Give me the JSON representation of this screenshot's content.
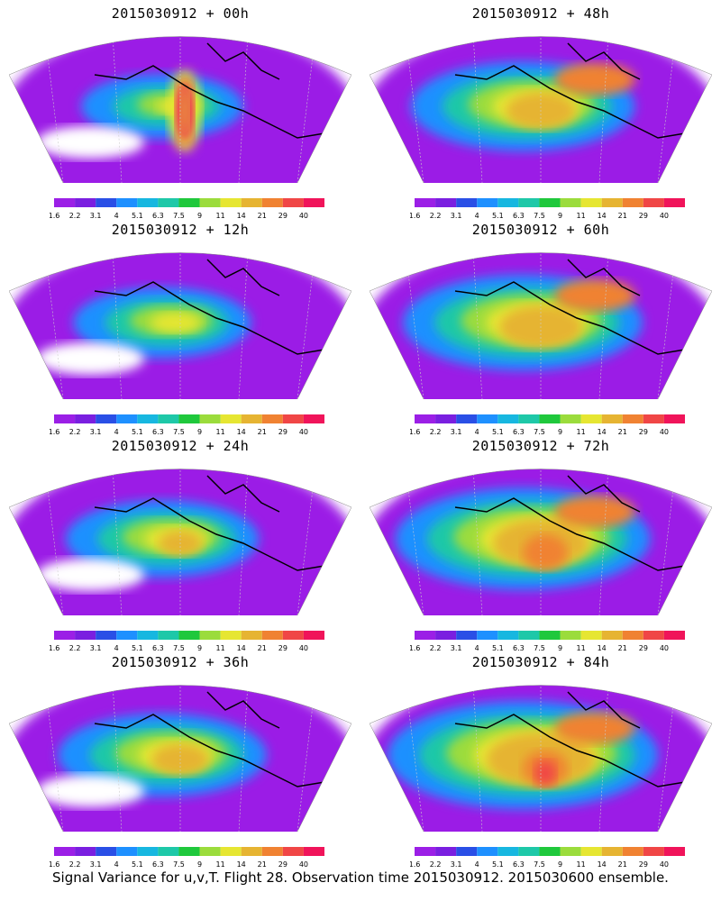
{
  "panels": [
    {
      "title": "2015030912 + 00h",
      "lead_hours": 0
    },
    {
      "title": "2015030912 + 48h",
      "lead_hours": 48
    },
    {
      "title": "2015030912 + 12h",
      "lead_hours": 12
    },
    {
      "title": "2015030912 + 60h",
      "lead_hours": 60
    },
    {
      "title": "2015030912 + 24h",
      "lead_hours": 24
    },
    {
      "title": "2015030912 + 72h",
      "lead_hours": 72
    },
    {
      "title": "2015030912 + 36h",
      "lead_hours": 36
    },
    {
      "title": "2015030912 + 84h",
      "lead_hours": 84
    }
  ],
  "colorbar": {
    "labels": [
      "1.6",
      "2.2",
      "3.1",
      "4",
      "5.1",
      "6.3",
      "7.5",
      "9",
      "11",
      "14",
      "21",
      "29",
      "40"
    ],
    "colors": [
      "#9b1fe6",
      "#7a1fe0",
      "#2a4fe6",
      "#1e90ff",
      "#17b7e0",
      "#1ec8a8",
      "#1fc83c",
      "#9bdc3c",
      "#e6e632",
      "#e6b432",
      "#f08232",
      "#f04646",
      "#f0145a"
    ]
  },
  "footer": "Signal Variance for u,v,T. Flight 28. Observation time 2015030912. 2015030600 ensemble."
}
